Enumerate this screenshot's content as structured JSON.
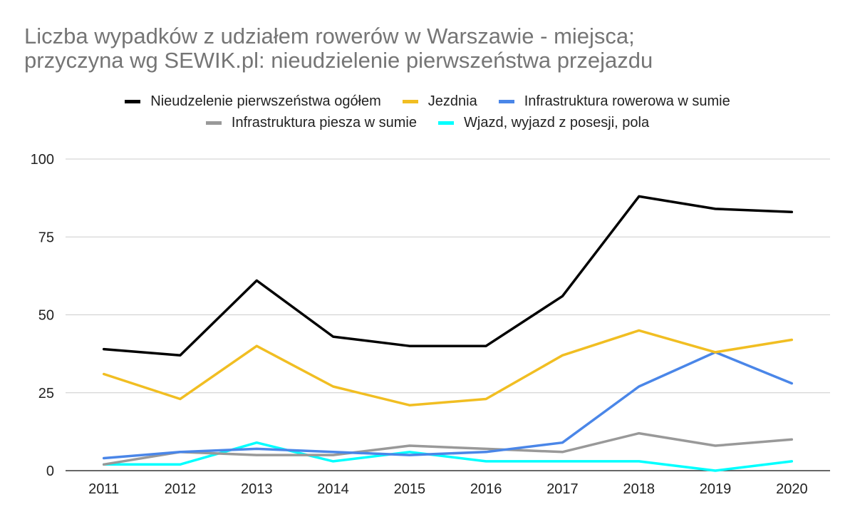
{
  "chart_data": {
    "type": "line",
    "title_lines": [
      "Liczba wypadków z udziałem rowerów w Warszawie - miejsca;",
      "przyczyna wg SEWIK.pl: nieudzielenie pierwszeństwa przejazdu"
    ],
    "categories": [
      "2011",
      "2012",
      "2013",
      "2014",
      "2015",
      "2016",
      "2017",
      "2018",
      "2019",
      "2020"
    ],
    "ylim": [
      0,
      100
    ],
    "yticks": [
      0,
      25,
      50,
      75,
      100
    ],
    "grid": true,
    "legend_position": "top",
    "series": [
      {
        "name": "Nieudzelenie pierwszeństwa ogółem",
        "color": "#000000",
        "values": [
          39,
          37,
          61,
          43,
          40,
          40,
          56,
          88,
          84,
          83
        ]
      },
      {
        "name": "Jezdnia",
        "color": "#f1be22",
        "values": [
          31,
          23,
          40,
          27,
          21,
          23,
          37,
          45,
          38,
          42
        ]
      },
      {
        "name": "Infrastruktura rowerowa w sumie",
        "color": "#4a86e8",
        "values": [
          4,
          6,
          7,
          6,
          5,
          6,
          9,
          27,
          38,
          28
        ]
      },
      {
        "name": "Infrastruktura piesza w sumie",
        "color": "#999999",
        "values": [
          2,
          6,
          5,
          5,
          8,
          7,
          6,
          12,
          8,
          10
        ]
      },
      {
        "name": "Wjazd, wyjazd z posesji, pola",
        "color": "#00ffff",
        "values": [
          2,
          2,
          9,
          3,
          6,
          3,
          3,
          3,
          0,
          3
        ]
      }
    ]
  }
}
